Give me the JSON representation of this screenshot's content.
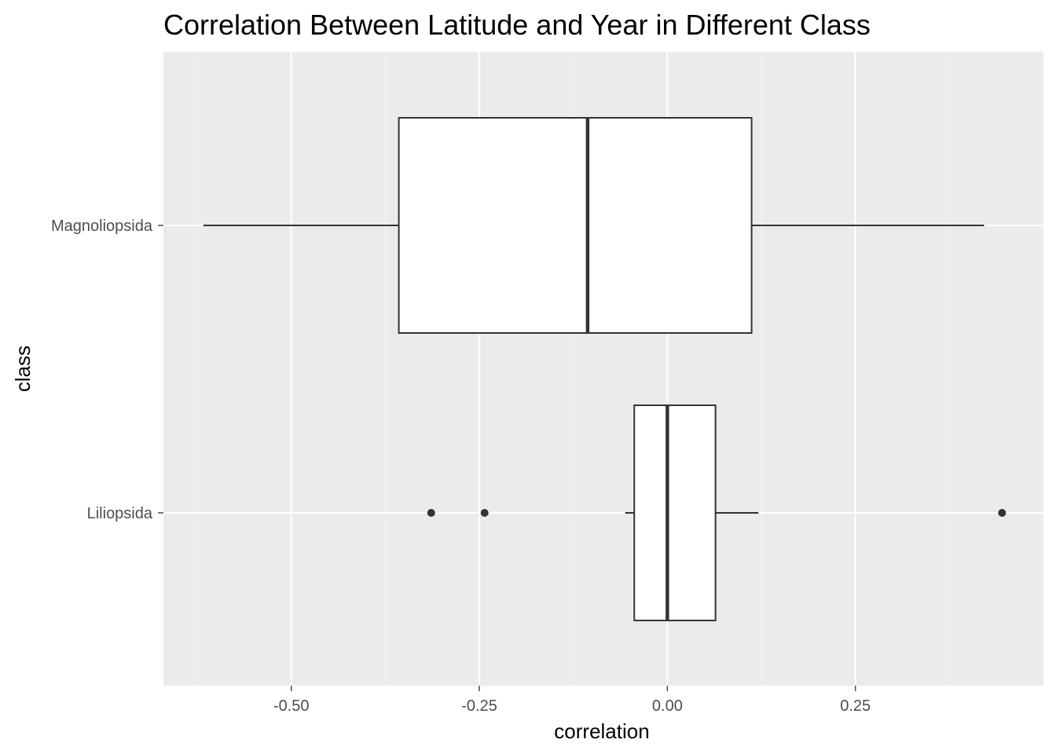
{
  "chart_data": {
    "type": "boxplot",
    "title": "Correlation Between Latitude and Year in Different Class",
    "xlabel": "correlation",
    "ylabel": "class",
    "xlim": [
      -0.67,
      0.5
    ],
    "x_ticks": [
      -0.5,
      -0.25,
      0.0,
      0.25
    ],
    "x_tick_labels": [
      "-0.50",
      "-0.25",
      "0.00",
      "0.25"
    ],
    "categories": [
      "Magnoliopsida",
      "Liliopsida"
    ],
    "series": [
      {
        "category": "Magnoliopsida",
        "whisker_low": -0.617,
        "q1": -0.357,
        "median": -0.106,
        "q3": 0.112,
        "whisker_high": 0.421,
        "outliers": []
      },
      {
        "category": "Liliopsida",
        "whisker_low": -0.056,
        "q1": -0.044,
        "median": 0.0,
        "q3": 0.064,
        "whisker_high": 0.121,
        "outliers": [
          -0.314,
          -0.243,
          0.445
        ]
      }
    ],
    "grid": true,
    "legend": "none",
    "colors": {
      "panel_background": "#ebebeb",
      "grid_major": "#ffffff",
      "grid_minor": "#f5f5f5",
      "box_fill": "#ffffff",
      "box_stroke": "#333333",
      "tick_text": "#4d4d4d",
      "axis_title": "#000000"
    }
  }
}
